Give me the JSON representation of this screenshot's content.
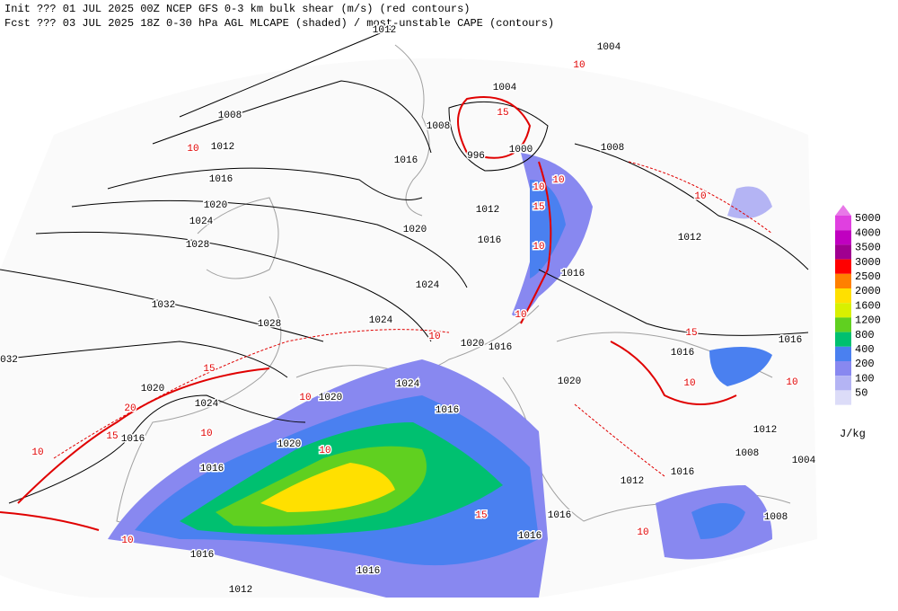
{
  "header": {
    "line1": "Init  ??? 01 JUL 2025 00Z  NCEP GFS 0-3 km bulk shear (m/s) (red contours)",
    "line2": "Fcst ??? 03 JUL 2025 18Z  0-30 hPa AGL MLCAPE (shaded) / most-unstable CAPE (contours)"
  },
  "legend": {
    "levels": [
      "5000",
      "4000",
      "3500",
      "3000",
      "2500",
      "2000",
      "1600",
      "1200",
      "800",
      "400",
      "200",
      "100",
      "50"
    ],
    "colors": [
      "#e040e0",
      "#c000c0",
      "#a00090",
      "#ff0000",
      "#ff8000",
      "#ffe000",
      "#d8f000",
      "#60d020",
      "#00c070",
      "#4a80f0",
      "#8888f0",
      "#b4b4f4",
      "#dcdcf8"
    ],
    "unit": "J/kg"
  },
  "isobar_labels": [
    "1012",
    "1004",
    "1008",
    "1004",
    "1008",
    "1000",
    "996",
    "1016",
    "1008",
    "1012",
    "1016",
    "1020",
    "1024",
    "1028",
    "1012",
    "1020",
    "1016",
    "1012",
    "1032",
    "032",
    "1024",
    "1016",
    "1028",
    "1024",
    "1020",
    "1016",
    "1016",
    "1016",
    "1024",
    "1020",
    "1020",
    "1024",
    "1020",
    "1016",
    "1016",
    "1020",
    "1012",
    "1008",
    "1004",
    "1016",
    "1016",
    "1012",
    "1016",
    "1016",
    "1008",
    "1016",
    "1016",
    "1012"
  ],
  "shear_labels": [
    "10",
    "15",
    "10",
    "15",
    "10",
    "15",
    "10",
    "10",
    "15",
    "10",
    "20",
    "15",
    "10",
    "10",
    "10",
    "10",
    "15",
    "10",
    "10",
    "10",
    "10",
    "10",
    "10"
  ]
}
